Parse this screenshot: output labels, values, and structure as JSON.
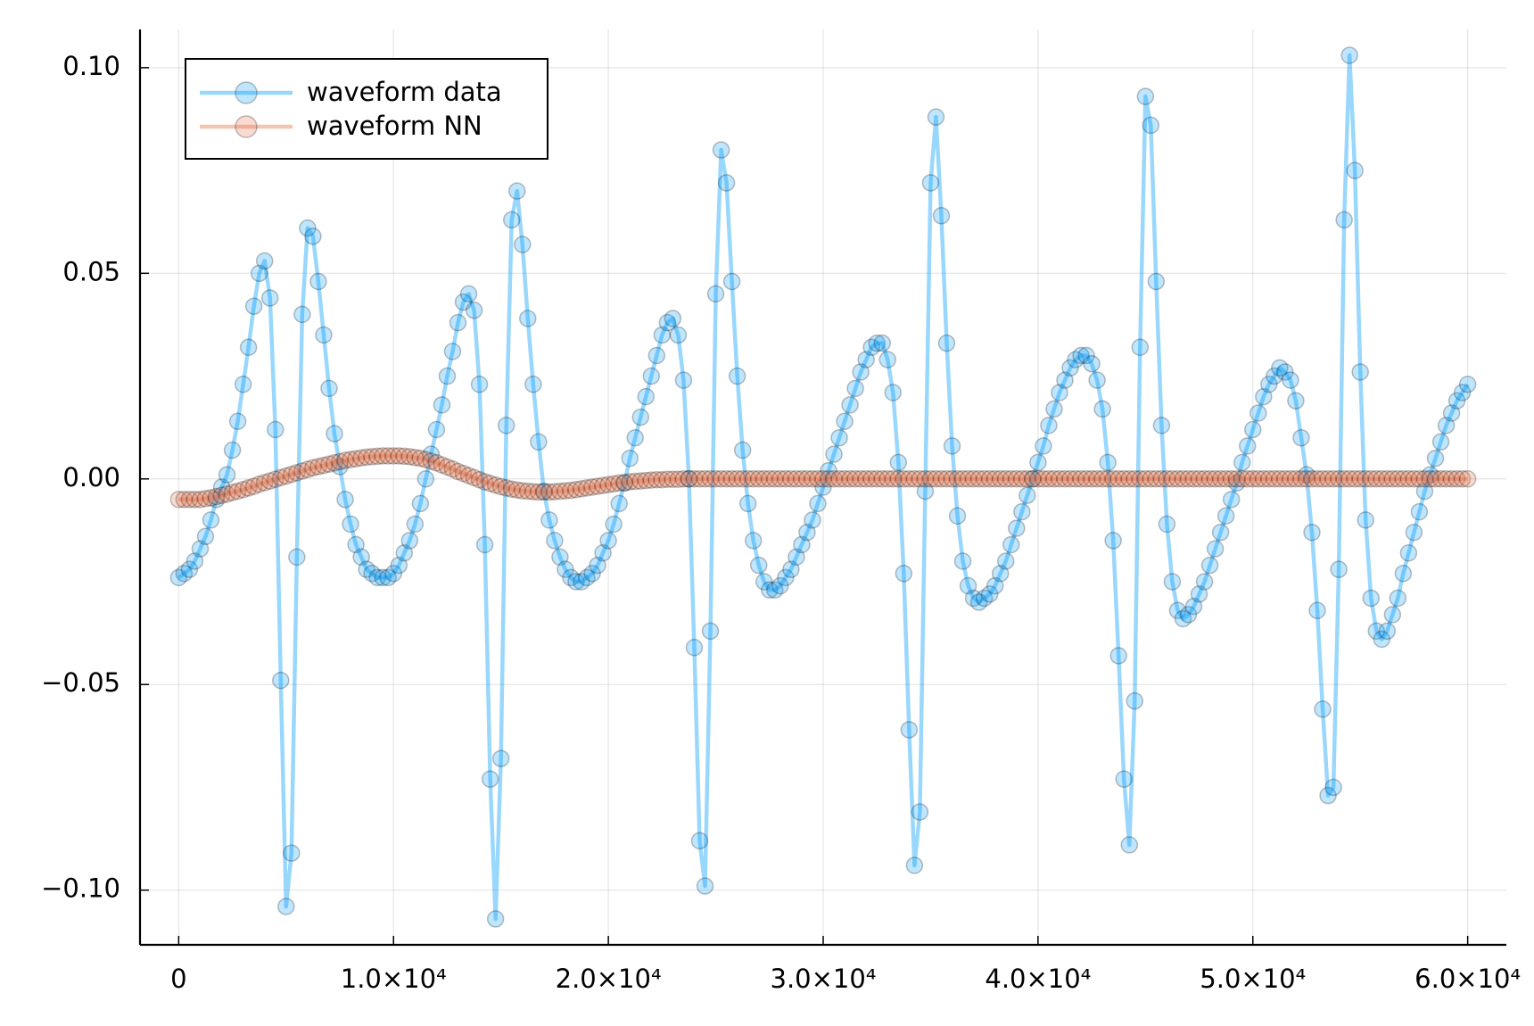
{
  "chart_data": {
    "type": "line",
    "x": [
      0,
      250,
      500,
      750,
      1000,
      1250,
      1500,
      1750,
      2000,
      2250,
      2500,
      2750,
      3000,
      3250,
      3500,
      3750,
      4000,
      4250,
      4500,
      4750,
      5000,
      5250,
      5500,
      5750,
      6000,
      6250,
      6500,
      6750,
      7000,
      7250,
      7500,
      7750,
      8000,
      8250,
      8500,
      8750,
      9000,
      9250,
      9500,
      9750,
      10000,
      10250,
      10500,
      10750,
      11000,
      11250,
      11500,
      11750,
      12000,
      12250,
      12500,
      12750,
      13000,
      13250,
      13500,
      13750,
      14000,
      14250,
      14500,
      14750,
      15000,
      15250,
      15500,
      15750,
      16000,
      16250,
      16500,
      16750,
      17000,
      17250,
      17500,
      17750,
      18000,
      18250,
      18500,
      18750,
      19000,
      19250,
      19500,
      19750,
      20000,
      20250,
      20500,
      20750,
      21000,
      21250,
      21500,
      21750,
      22000,
      22250,
      22500,
      22750,
      23000,
      23250,
      23500,
      23750,
      24000,
      24250,
      24500,
      24750,
      25000,
      25250,
      25500,
      25750,
      26000,
      26250,
      26500,
      26750,
      27000,
      27250,
      27500,
      27750,
      28000,
      28250,
      28500,
      28750,
      29000,
      29250,
      29500,
      29750,
      30000,
      30250,
      30500,
      30750,
      31000,
      31250,
      31500,
      31750,
      32000,
      32250,
      32500,
      32750,
      33000,
      33250,
      33500,
      33750,
      34000,
      34250,
      34500,
      34750,
      35000,
      35250,
      35500,
      35750,
      36000,
      36250,
      36500,
      36750,
      37000,
      37250,
      37500,
      37750,
      38000,
      38250,
      38500,
      38750,
      39000,
      39250,
      39500,
      39750,
      40000,
      40250,
      40500,
      40750,
      41000,
      41250,
      41500,
      41750,
      42000,
      42250,
      42500,
      42750,
      43000,
      43250,
      43500,
      43750,
      44000,
      44250,
      44500,
      44750,
      45000,
      45250,
      45500,
      45750,
      46000,
      46250,
      46500,
      46750,
      47000,
      47250,
      47500,
      47750,
      48000,
      48250,
      48500,
      48750,
      49000,
      49250,
      49500,
      49750,
      50000,
      50250,
      50500,
      50750,
      51000,
      51250,
      51500,
      51750,
      52000,
      52250,
      52500,
      52750,
      53000,
      53250,
      53500,
      53750,
      54000,
      54250,
      54500,
      54750,
      55000,
      55250,
      55500,
      55750,
      56000,
      56250,
      56500,
      56750,
      57000,
      57250,
      57500,
      57750,
      58000,
      58250,
      58500,
      58750,
      59000,
      59250,
      59500,
      59750,
      60000
    ],
    "series": [
      {
        "name": "waveform data",
        "color": "#009afa",
        "values": [
          -0.024,
          -0.023,
          -0.022,
          -0.02,
          -0.017,
          -0.014,
          -0.01,
          -0.005,
          -0.002,
          0.001,
          0.007,
          0.014,
          0.023,
          0.032,
          0.042,
          0.05,
          0.053,
          0.044,
          0.012,
          -0.049,
          -0.104,
          -0.091,
          -0.019,
          0.04,
          0.061,
          0.059,
          0.048,
          0.035,
          0.022,
          0.011,
          0.003,
          -0.005,
          -0.011,
          -0.016,
          -0.019,
          -0.022,
          -0.023,
          -0.024,
          -0.024,
          -0.024,
          -0.023,
          -0.021,
          -0.018,
          -0.015,
          -0.011,
          -0.006,
          0.0,
          0.006,
          0.012,
          0.018,
          0.025,
          0.031,
          0.038,
          0.043,
          0.045,
          0.041,
          0.023,
          -0.016,
          -0.073,
          -0.107,
          -0.068,
          0.013,
          0.063,
          0.07,
          0.057,
          0.039,
          0.023,
          0.009,
          -0.003,
          -0.01,
          -0.015,
          -0.019,
          -0.022,
          -0.024,
          -0.025,
          -0.025,
          -0.024,
          -0.023,
          -0.021,
          -0.018,
          -0.015,
          -0.011,
          -0.006,
          -0.001,
          0.005,
          0.01,
          0.015,
          0.02,
          0.025,
          0.03,
          0.035,
          0.038,
          0.039,
          0.035,
          0.024,
          0.0,
          -0.041,
          -0.088,
          -0.099,
          -0.037,
          0.045,
          0.08,
          0.072,
          0.048,
          0.025,
          0.007,
          -0.006,
          -0.015,
          -0.021,
          -0.025,
          -0.027,
          -0.027,
          -0.026,
          -0.024,
          -0.022,
          -0.019,
          -0.016,
          -0.013,
          -0.01,
          -0.006,
          -0.002,
          0.002,
          0.006,
          0.01,
          0.014,
          0.018,
          0.022,
          0.026,
          0.029,
          0.032,
          0.033,
          0.033,
          0.029,
          0.021,
          0.004,
          -0.023,
          -0.061,
          -0.094,
          -0.081,
          -0.003,
          0.072,
          0.088,
          0.064,
          0.033,
          0.008,
          -0.009,
          -0.02,
          -0.026,
          -0.029,
          -0.03,
          -0.029,
          -0.028,
          -0.026,
          -0.023,
          -0.02,
          -0.016,
          -0.012,
          -0.008,
          -0.004,
          0.0,
          0.004,
          0.008,
          0.013,
          0.017,
          0.021,
          0.024,
          0.027,
          0.029,
          0.03,
          0.03,
          0.028,
          0.024,
          0.017,
          0.004,
          -0.015,
          -0.043,
          -0.073,
          -0.089,
          -0.054,
          0.032,
          0.093,
          0.086,
          0.048,
          0.013,
          -0.011,
          -0.025,
          -0.032,
          -0.034,
          -0.033,
          -0.031,
          -0.028,
          -0.025,
          -0.021,
          -0.017,
          -0.013,
          -0.009,
          -0.005,
          -0.001,
          0.004,
          0.008,
          0.012,
          0.016,
          0.02,
          0.023,
          0.025,
          0.027,
          0.026,
          0.024,
          0.019,
          0.01,
          0.001,
          -0.013,
          -0.032,
          -0.056,
          -0.077,
          -0.075,
          -0.022,
          0.063,
          0.103,
          0.075,
          0.026,
          -0.01,
          -0.029,
          -0.037,
          -0.039,
          -0.037,
          -0.033,
          -0.029,
          -0.023,
          -0.018,
          -0.013,
          -0.008,
          -0.003,
          0.001,
          0.005,
          0.009,
          0.013,
          0.016,
          0.019,
          0.021,
          0.023
        ]
      },
      {
        "name": "waveform NN",
        "color": "#e26f46",
        "values": [
          -0.005,
          -0.005,
          -0.005,
          -0.005,
          -0.005,
          -0.0048,
          -0.0046,
          -0.0043,
          -0.004,
          -0.0037,
          -0.0033,
          -0.003,
          -0.0026,
          -0.0022,
          -0.0018,
          -0.0013,
          -0.0009,
          -0.0005,
          -0.0001,
          0.0003,
          0.0007,
          0.0011,
          0.0015,
          0.0019,
          0.0023,
          0.0027,
          0.003,
          0.0033,
          0.0036,
          0.0039,
          0.0042,
          0.0045,
          0.0047,
          0.0049,
          0.0051,
          0.0053,
          0.0054,
          0.0055,
          0.0056,
          0.0056,
          0.0056,
          0.0056,
          0.0055,
          0.0054,
          0.0052,
          0.005,
          0.0047,
          0.0043,
          0.0039,
          0.0034,
          0.0029,
          0.0024,
          0.0018,
          0.0013,
          0.0008,
          0.0003,
          -0.0002,
          -0.0007,
          -0.0011,
          -0.0015,
          -0.0019,
          -0.0022,
          -0.0025,
          -0.0027,
          -0.0029,
          -0.003,
          -0.0031,
          -0.0032,
          -0.0032,
          -0.0032,
          -0.0031,
          -0.003,
          -0.0029,
          -0.0028,
          -0.0026,
          -0.0024,
          -0.0022,
          -0.002,
          -0.0018,
          -0.0016,
          -0.0014,
          -0.0012,
          -0.001,
          -0.0009,
          -0.0007,
          -0.0006,
          -0.0005,
          -0.0004,
          -0.0003,
          -0.0002,
          -0.0002,
          -0.0001,
          -0.0001,
          -0.0001,
          0,
          0,
          0,
          0,
          0,
          0,
          0,
          0,
          0,
          0,
          0,
          0,
          0,
          0,
          0,
          0,
          0,
          0,
          0,
          0,
          0,
          0,
          0,
          0,
          0,
          0,
          0,
          0,
          0,
          0,
          0,
          0,
          0,
          0,
          0,
          0,
          0,
          0,
          0,
          0,
          0,
          0,
          0,
          0,
          0,
          0,
          0,
          0,
          0,
          0,
          0,
          0,
          0,
          0,
          0,
          0,
          0,
          0,
          0,
          0,
          0,
          0,
          0,
          0,
          0,
          0,
          0,
          0,
          0,
          0,
          0,
          0,
          0,
          0,
          0,
          0,
          0,
          0,
          0,
          0,
          0,
          0,
          0,
          0,
          0,
          0,
          0,
          0,
          0,
          0,
          0,
          0,
          0,
          0,
          0,
          0,
          0,
          0,
          0,
          0,
          0,
          0,
          0,
          0,
          0,
          0,
          0,
          0,
          0,
          0,
          0,
          0,
          0,
          0,
          0,
          0,
          0,
          0,
          0,
          0,
          0,
          0,
          0,
          0,
          0,
          0,
          0,
          0,
          0,
          0,
          0,
          0,
          0,
          0,
          0,
          0,
          0,
          0,
          0,
          0,
          0,
          0,
          0,
          0,
          0,
          0,
          0
        ]
      }
    ],
    "xlim": [
      -1800,
      61800
    ],
    "xticks": [
      0,
      {
        "value": 10000,
        "label": "1.0×10⁴"
      },
      {
        "value": 20000,
        "label": "2.0×10⁴"
      },
      {
        "value": 30000,
        "label": "3.0×10⁴"
      },
      {
        "value": 40000,
        "label": "4.0×10⁴"
      },
      {
        "value": 50000,
        "label": "5.0×10⁴"
      },
      {
        "value": 60000,
        "label": "6.0×10⁴"
      }
    ],
    "ylim": [
      -0.1133,
      0.1093
    ],
    "yticks": [
      {
        "value": -0.1,
        "label": "−0.10"
      },
      {
        "value": -0.05,
        "label": "−0.05"
      },
      {
        "value": 0,
        "label": "0.00"
      },
      {
        "value": 0.05,
        "label": "0.05"
      },
      {
        "value": 0.1,
        "label": "0.10"
      }
    ],
    "grid": true,
    "legend": "top left",
    "markers": true
  }
}
